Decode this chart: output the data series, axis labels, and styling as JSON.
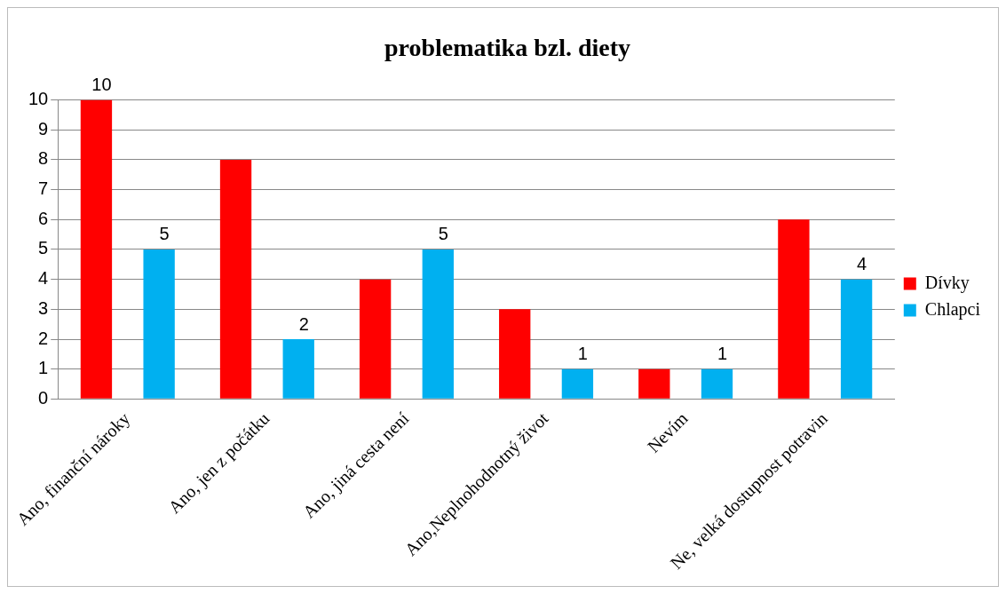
{
  "chart_data": {
    "type": "bar",
    "title": "problematika bzl. diety",
    "categories": [
      "Ano, finanční nároky",
      "Ano, jen z počátku",
      "Ano, jiná cesta není",
      "Ano,Neplnohodnotný život",
      "Nevím",
      "Ne, velká dostupnost potravin"
    ],
    "series": [
      {
        "name": "Dívky",
        "color": "#ff0000",
        "values": [
          10,
          8,
          4,
          3,
          1,
          6
        ],
        "value_labels": [
          "10",
          null,
          null,
          null,
          null,
          null
        ]
      },
      {
        "name": "Chlapci",
        "color": "#00b0f0",
        "values": [
          5,
          2,
          5,
          1,
          1,
          4
        ],
        "value_labels": [
          "5",
          "2",
          "5",
          "1",
          "1",
          "4"
        ]
      }
    ],
    "ylim": [
      0,
      10
    ],
    "yticks": [
      0,
      1,
      2,
      3,
      4,
      5,
      6,
      7,
      8,
      9,
      10
    ],
    "grid": "y",
    "legend": "right"
  }
}
